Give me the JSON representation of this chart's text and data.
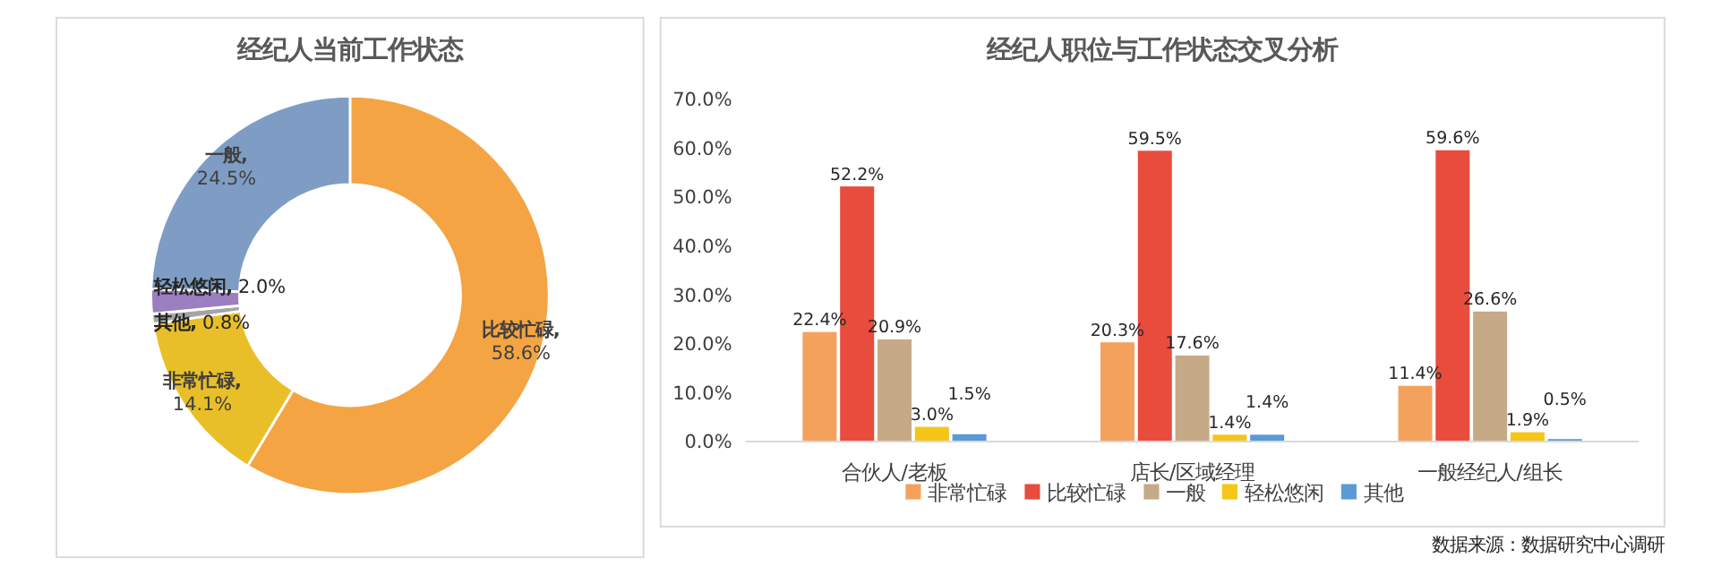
{
  "chart_data": [
    {
      "type": "donut",
      "title": "经纪人当前工作状态",
      "categories": [
        "比较忙碌",
        "非常忙碌",
        "其他",
        "轻松悠闲",
        "一般"
      ],
      "values": [
        58.6,
        14.1,
        0.8,
        2.0,
        24.5
      ],
      "value_labels": [
        ",\n58.6%",
        ",\n14.1%",
        ",\n0.8%",
        ",\n2.0%",
        ",\n24.5%"
      ],
      "colors": [
        "#f4a442",
        "#e8bf28",
        "#a5a5a5",
        "#9b7fc0",
        "#7f9dc4"
      ]
    },
    {
      "type": "bar",
      "title": "经纪人职位与工作状态交叉分析",
      "categories": [
        "合伙人/老板",
        "店长/区域经理",
        "一般经纪人/组长"
      ],
      "series": [
        {
          "name": "非常忙碌",
          "color": "#f4a15e",
          "values": [
            22.4,
            20.3,
            11.4
          ]
        },
        {
          "name": "比较忙碌",
          "color": "#e84c3d",
          "values": [
            52.2,
            59.5,
            59.6
          ]
        },
        {
          "name": "一般",
          "color": "#c6a986",
          "values": [
            20.9,
            17.6,
            26.6
          ]
        },
        {
          "name": "轻松悠闲",
          "color": "#f5c518",
          "values": [
            3.0,
            1.4,
            1.9
          ]
        },
        {
          "name": "其他",
          "color": "#5b9bd5",
          "values": [
            1.5,
            1.4,
            0.5
          ]
        }
      ],
      "ylim": [
        0,
        70
      ],
      "yticks": [
        {
          "value": 0,
          "label": "0.0%"
        },
        {
          "value": 10,
          "label": "10.0%"
        },
        {
          "value": 20,
          "label": "20.0%"
        },
        {
          "value": 30,
          "label": "30.0%"
        },
        {
          "value": 40,
          "label": "40.0%"
        },
        {
          "value": 50,
          "label": "50.0%"
        },
        {
          "value": 60,
          "label": "60.0%"
        },
        {
          "value": 70,
          "label": "70.0%"
        }
      ],
      "value_labels": [
        [
          "22.4%",
          "20.3%",
          "11.4%"
        ],
        [
          "52.2%",
          "59.5%",
          "59.6%"
        ],
        [
          "20.9%",
          "17.6%",
          "26.6%"
        ],
        [
          "3.0%",
          "1.4%",
          "1.9%"
        ],
        [
          "1.5%",
          "1.4%",
          "0.5%"
        ]
      ],
      "grid": false,
      "legend": "bottom",
      "annotations": [
        "数据来源：数据研究中心调研"
      ]
    }
  ]
}
